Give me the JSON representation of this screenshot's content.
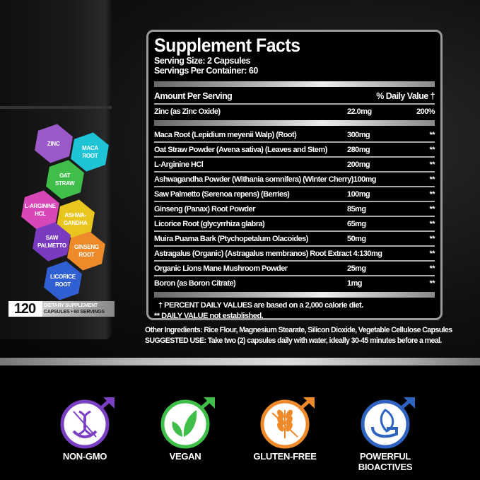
{
  "bottle": {
    "hexagons": [
      {
        "label": "ZINC",
        "color": "#9b59c9"
      },
      {
        "label": "MACA\nROOT",
        "color": "#1fc3d6"
      },
      {
        "label": "OAT\nSTRAW",
        "color": "#3fbf4a"
      },
      {
        "label": "L-ARGININE\nHCL",
        "color": "#d847b8"
      },
      {
        "label": "ASHWA-\nGANDHA",
        "color": "#e9c61e"
      },
      {
        "label": "SAW\nPALMETTO",
        "color": "#7a3bc0"
      },
      {
        "label": "GINSENG\nROOT",
        "color": "#ee8a2a"
      },
      {
        "label": "LICORICE\nROOT",
        "color": "#2f5fd0"
      }
    ],
    "count": "120",
    "line1": "DIETARY SUPPLEMENT",
    "line2": "CAPSULES • 60 SERVINGS"
  },
  "facts": {
    "title": "Supplement Facts",
    "serving_size": "Serving Size: 2 Capsules",
    "servings_per_container": "Servings Per Container: 60",
    "amount_header": "Amount Per Serving",
    "dv_header": "% Daily Value †",
    "zinc": {
      "name": "Zinc (as Zinc Oxide)",
      "amount": "22.0mg",
      "dv": "200%"
    },
    "rows": [
      {
        "name": "Maca Root (Lepidium meyenii Walp) (Root)",
        "amount": "300mg",
        "dv": "**"
      },
      {
        "name": "Oat Straw Powder (Avena sativa) (Leaves and Stem)",
        "amount": "280mg",
        "dv": "**"
      },
      {
        "name": "L-Arginine HCl",
        "amount": "200mg",
        "dv": "**"
      },
      {
        "name": "Ashwagandha Powder (Withania somnifera) (Winter Cherry)",
        "amount": "100mg",
        "dv": "**"
      },
      {
        "name": "Saw Palmetto (Serenoa repens) (Berries)",
        "amount": "100mg",
        "dv": "**"
      },
      {
        "name": "Ginseng (Panax) Root Powder",
        "amount": "85mg",
        "dv": "**"
      },
      {
        "name": "Licorice Root (glycyrrhiza glabra)",
        "amount": "65mg",
        "dv": "**"
      },
      {
        "name": "Muira Puama Bark (Ptychopetalum Olacoides)",
        "amount": "50mg",
        "dv": "**"
      },
      {
        "name": "Astragalus (Organic) (Astragalus membranos) Root Extract 4:1",
        "amount": "30mg",
        "dv": "**"
      },
      {
        "name": "Organic Lions Mane Mushroom Powder",
        "amount": "25mg",
        "dv": "**"
      },
      {
        "name": "Boron (as Boron Citrate)",
        "amount": "1mg",
        "dv": "**"
      }
    ],
    "footnote1": "† PERCENT DAILY VALUES are based on a 2,000 calorie diet.",
    "footnote2": "** DAILY VALUE not established."
  },
  "other_ingredients": "Other Ingredients:  Rice Flour, Magnesium Stearate, Silicon Dioxide, Vegetable Cellulose Capsules",
  "suggested_use": "SUGGESTED USE: Take two (2) capsules daily with water, ideally 30-45 minutes before a meal.",
  "badges": [
    {
      "label": "NON-GMO",
      "icon": "dna-crossed-icon",
      "color": "#7b3fc4"
    },
    {
      "label": "VEGAN",
      "icon": "leaves-icon",
      "color": "#3fbf4a"
    },
    {
      "label": "GLUTEN-FREE",
      "icon": "wheat-crossed-icon",
      "color": "#ee8a2a"
    },
    {
      "label": "POWERFUL\nBIOACTIVES",
      "icon": "hand-leaf-icon",
      "color": "#2f63c0"
    }
  ]
}
